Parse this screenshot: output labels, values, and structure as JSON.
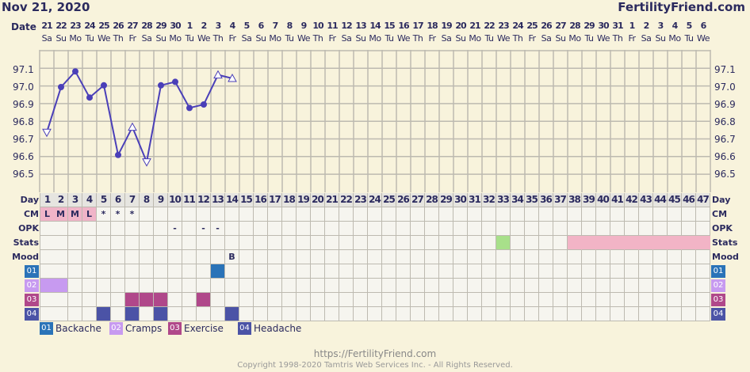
{
  "header": {
    "date": "Nov 21, 2020",
    "brand": "FertilityFriend.com",
    "date_label": "Date"
  },
  "dates": [
    "21",
    "22",
    "23",
    "24",
    "25",
    "26",
    "27",
    "28",
    "29",
    "30",
    "1",
    "2",
    "3",
    "4",
    "5",
    "6",
    "7",
    "8",
    "9",
    "10",
    "11",
    "12",
    "13",
    "14",
    "15",
    "16",
    "17",
    "18",
    "19",
    "20",
    "21",
    "22",
    "23",
    "24",
    "25",
    "26",
    "27",
    "28",
    "29",
    "30",
    "31",
    "1",
    "2",
    "3",
    "4",
    "5",
    "6"
  ],
  "weekdays": [
    "Sa",
    "Su",
    "Mo",
    "Tu",
    "We",
    "Th",
    "Fr",
    "Sa",
    "Su",
    "Mo",
    "Tu",
    "We",
    "Th",
    "Fr",
    "Sa",
    "Su",
    "Mo",
    "Tu",
    "We",
    "Th",
    "Fr",
    "Sa",
    "Su",
    "Mo",
    "Tu",
    "We",
    "Th",
    "Fr",
    "Sa",
    "Su",
    "Mo",
    "Tu",
    "We",
    "Th",
    "Fr",
    "Sa",
    "Su",
    "Mo",
    "Tu",
    "We",
    "Th",
    "Fr",
    "Sa",
    "Su",
    "Mo",
    "Tu",
    "We"
  ],
  "row_labels": {
    "day": "Day",
    "cm": "CM",
    "opk": "OPK",
    "stats": "Stats",
    "mood": "Mood"
  },
  "cm": {
    "1": "L",
    "2": "M",
    "3": "M",
    "4": "L",
    "5": "*",
    "6": "*",
    "7": "*"
  },
  "opk": {
    "10": "-",
    "12": "-",
    "13": "-"
  },
  "mood": {
    "14": "B"
  },
  "stats": {
    "green_days": [
      33
    ],
    "pink_days": [
      38,
      39,
      40,
      41,
      42,
      43,
      44,
      45,
      46,
      47
    ]
  },
  "symptoms": [
    {
      "code": "01",
      "name": "Backache",
      "color": "#2a73b8",
      "days": [
        13
      ]
    },
    {
      "code": "02",
      "name": "Cramps",
      "color": "#c79af0",
      "days": [
        1,
        2
      ]
    },
    {
      "code": "03",
      "name": "Exercise",
      "color": "#b0488a",
      "days": [
        7,
        8,
        9,
        12
      ]
    },
    {
      "code": "04",
      "name": "Headache",
      "color": "#4b53a6",
      "days": [
        5,
        7,
        9,
        14
      ]
    }
  ],
  "colors": {
    "line": "#4a3fb8",
    "cm_bg": "#f0b4c8",
    "stats_green": "#a8e08a",
    "stats_pink": "#f2b4c6"
  },
  "chart_data": {
    "type": "line",
    "ylim": [
      96.4,
      97.2
    ],
    "yticks": [
      "97.1",
      "97.0",
      "96.9",
      "96.8",
      "96.7",
      "96.6",
      "96.5"
    ],
    "x_days": [
      1,
      2,
      3,
      4,
      5,
      6,
      7,
      8,
      9,
      10,
      11,
      12,
      13,
      14
    ],
    "temps": [
      96.74,
      97.0,
      97.09,
      96.94,
      97.01,
      96.61,
      96.77,
      96.57,
      97.01,
      97.03,
      96.88,
      96.9,
      97.07,
      97.05
    ],
    "markers": [
      "tri-down",
      "dot",
      "dot",
      "dot",
      "dot",
      "dot",
      "tri-up",
      "tri-down",
      "dot",
      "dot",
      "dot",
      "dot",
      "tri-up",
      "tri-up"
    ]
  },
  "footer": {
    "url": "https://FertilityFriend.com",
    "copyright": "Copyright 1998-2020 Tamtris Web Services Inc. - All Rights Reserved."
  }
}
